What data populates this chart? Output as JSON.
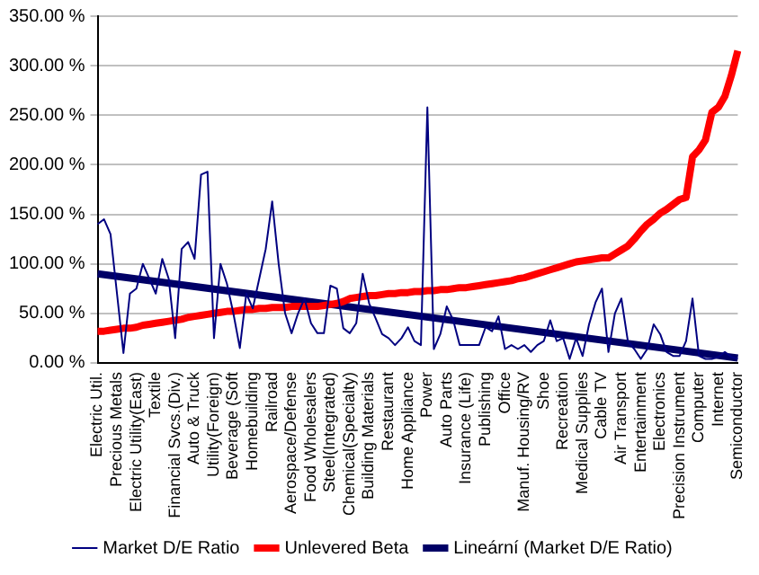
{
  "chart_data": {
    "type": "line",
    "categories": [
      "Electric Util.",
      null,
      null,
      "Precious Metals",
      null,
      null,
      "Electric Utility(East)",
      null,
      null,
      "Textile",
      null,
      null,
      "Financial Svcs.(Div.)",
      null,
      null,
      "Auto & Truck",
      null,
      null,
      "Utility(Foreign)",
      null,
      null,
      "Beverage (Soft",
      null,
      null,
      "Homebuilding",
      null,
      null,
      "Railroad",
      null,
      null,
      "Aerospace/Defense",
      null,
      null,
      "Food Wholesalers",
      null,
      null,
      "Steel(Integrated)",
      null,
      null,
      "Chemical(Specialty)",
      null,
      null,
      "Building Materials",
      null,
      null,
      "Restaurant",
      null,
      null,
      "Home Appliance",
      null,
      null,
      "Power",
      null,
      null,
      "Auto Parts",
      null,
      null,
      "Insurance (Life)",
      null,
      null,
      "Publishing",
      null,
      null,
      "Office",
      null,
      null,
      "Manuf. Housing/RV",
      null,
      null,
      "Shoe",
      null,
      null,
      "Recreation",
      null,
      null,
      "Medical Supplies",
      null,
      null,
      "Cable TV",
      null,
      null,
      "Air Transport",
      null,
      null,
      "Entertainment",
      null,
      null,
      "Electronics",
      null,
      null,
      "Precision Instrument",
      null,
      null,
      "Computer",
      null,
      null,
      "Internet",
      null,
      null,
      "Semiconductor"
    ],
    "series": [
      {
        "name": "Market D/E Ratio",
        "type": "line",
        "color": "#000080",
        "values": [
          140,
          145,
          130,
          70,
          10,
          70,
          75,
          100,
          85,
          70,
          105,
          85,
          25,
          115,
          122,
          105,
          190,
          193,
          25,
          100,
          80,
          50,
          15,
          70,
          55,
          85,
          115,
          163,
          100,
          50,
          30,
          50,
          65,
          40,
          30,
          30,
          78,
          75,
          35,
          30,
          40,
          90,
          60,
          45,
          29,
          25,
          18,
          25,
          36,
          22,
          18,
          258,
          14,
          29,
          57,
          43,
          18,
          18,
          18,
          18,
          36,
          32,
          47,
          14,
          18,
          14,
          18,
          11,
          18,
          22,
          43,
          22,
          25,
          4,
          25,
          7,
          39,
          61,
          75,
          11,
          50,
          65,
          22,
          14,
          4,
          14,
          39,
          29,
          11,
          7,
          7,
          22,
          65,
          7,
          4,
          4,
          6,
          11,
          6,
          4
        ]
      },
      {
        "name": "Unlevered Beta",
        "type": "line",
        "color": "#ff0000",
        "values": [
          32,
          32,
          33,
          34,
          35,
          35,
          36,
          38,
          39,
          40,
          41,
          42,
          43,
          44,
          46,
          47,
          48,
          49,
          50,
          51,
          52,
          52,
          53,
          54,
          54,
          55,
          55,
          56,
          56,
          56,
          57,
          57,
          57,
          57,
          57,
          58,
          59,
          60,
          62,
          65,
          66,
          67,
          68,
          68,
          69,
          70,
          70,
          71,
          71,
          72,
          72,
          73,
          73,
          74,
          74,
          75,
          76,
          76,
          77,
          78,
          79,
          80,
          81,
          82,
          83,
          85,
          86,
          88,
          90,
          92,
          94,
          96,
          98,
          100,
          102,
          103,
          104,
          105,
          106,
          106,
          110,
          114,
          118,
          125,
          133,
          140,
          145,
          151,
          155,
          160,
          165,
          167,
          208,
          215,
          225,
          253,
          258,
          269,
          290,
          315
        ]
      },
      {
        "name": "Lineární (Market D/E Ratio)",
        "type": "line",
        "color": "#000066",
        "values": [
          90,
          null,
          null,
          null,
          null,
          null,
          null,
          null,
          null,
          null,
          null,
          null,
          null,
          null,
          null,
          null,
          null,
          null,
          null,
          null,
          null,
          null,
          null,
          null,
          null,
          null,
          null,
          null,
          null,
          null,
          null,
          null,
          null,
          null,
          null,
          null,
          null,
          null,
          null,
          null,
          null,
          null,
          null,
          null,
          null,
          null,
          null,
          null,
          null,
          null,
          null,
          null,
          null,
          null,
          null,
          null,
          null,
          null,
          null,
          null,
          null,
          null,
          null,
          null,
          null,
          null,
          null,
          null,
          null,
          null,
          null,
          null,
          null,
          null,
          null,
          null,
          null,
          null,
          null,
          null,
          null,
          null,
          null,
          null,
          null,
          null,
          null,
          null,
          null,
          null,
          null,
          null,
          null,
          null,
          null,
          null,
          null,
          null,
          null,
          5
        ]
      }
    ],
    "ylim": [
      0,
      350
    ],
    "yticks": [
      {
        "value": 0,
        "label": "0.00 %"
      },
      {
        "value": 50,
        "label": "50.00 %"
      },
      {
        "value": 100,
        "label": "100.00 %"
      },
      {
        "value": 150,
        "label": "150.00 %"
      },
      {
        "value": 200,
        "label": "200.00 %"
      },
      {
        "value": 250,
        "label": "250.00 %"
      },
      {
        "value": 300,
        "label": "300.00 %"
      },
      {
        "value": 350,
        "label": "350.00 %"
      }
    ],
    "grid": "y",
    "legend": "bottom",
    "marker": "none",
    "line_style": "solid"
  }
}
